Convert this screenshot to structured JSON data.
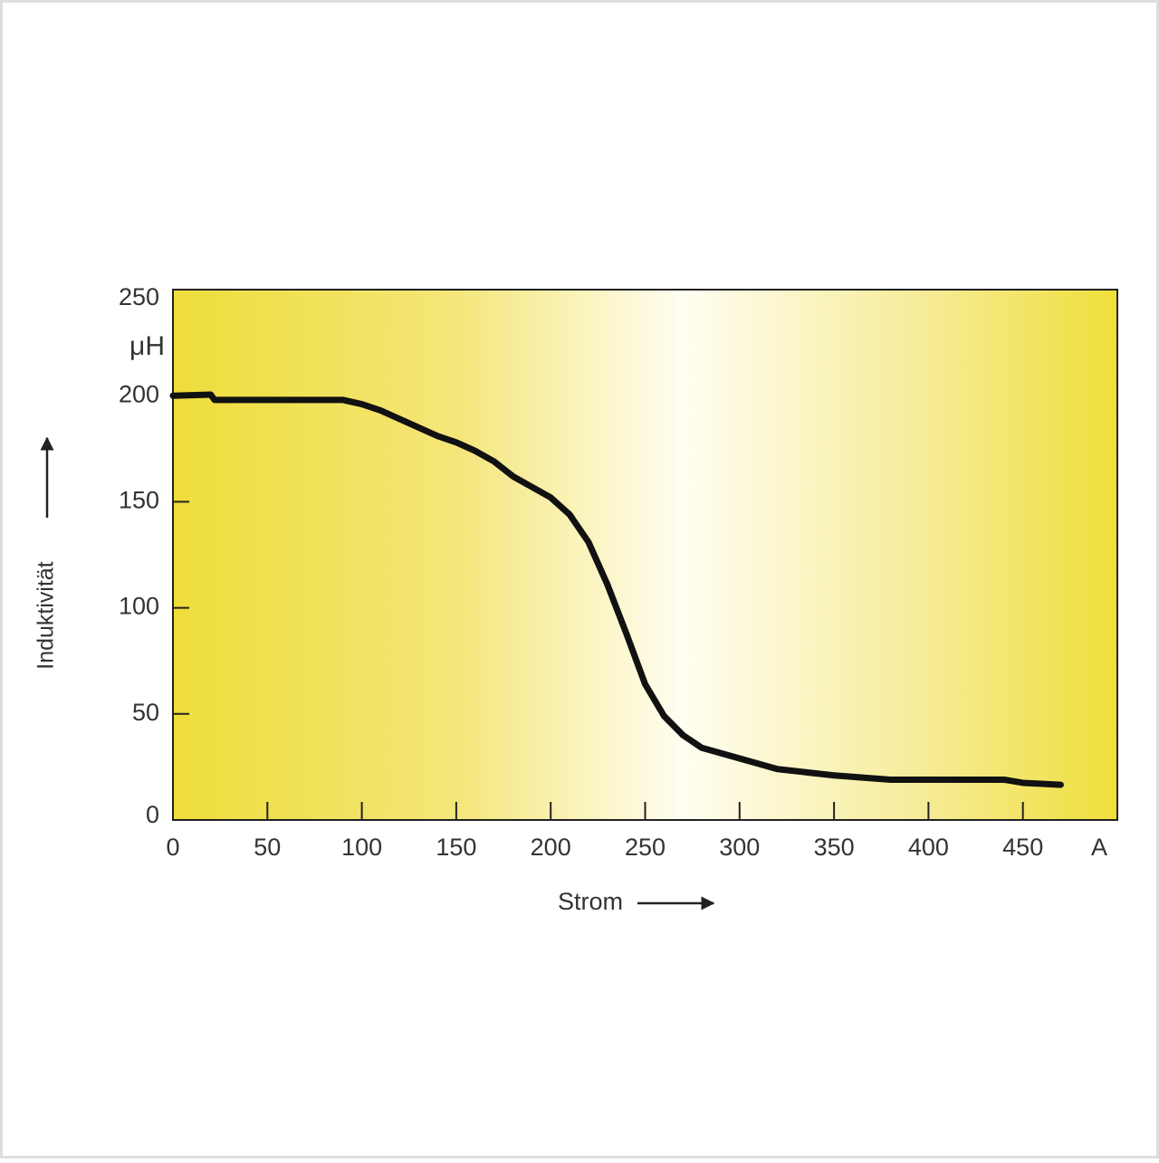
{
  "chart_data": {
    "type": "line",
    "x_label": "Strom",
    "y_label": "Induktivität",
    "x_unit": "A",
    "y_unit": "μH",
    "series": [
      {
        "name": null,
        "color": "#111111",
        "x": [
          0,
          20,
          22,
          50,
          90,
          100,
          110,
          120,
          130,
          140,
          150,
          160,
          170,
          180,
          190,
          200,
          210,
          220,
          230,
          240,
          250,
          260,
          270,
          280,
          300,
          320,
          350,
          380,
          400,
          440,
          450,
          470
        ],
        "values": [
          200,
          200.5,
          198,
          198,
          198,
          196,
          193,
          189,
          185,
          181,
          178,
          174,
          169,
          162,
          157,
          152,
          144,
          131,
          111,
          88,
          64,
          49,
          40,
          34,
          29,
          24,
          21,
          19,
          19,
          19,
          17.5,
          16.6
        ]
      }
    ],
    "xlim": [
      0,
      500
    ],
    "xticks": [
      0,
      50,
      100,
      150,
      200,
      250,
      300,
      350,
      400,
      450
    ],
    "ylim": [
      0,
      250
    ],
    "yticks": [
      0,
      50,
      100,
      150,
      200,
      250
    ]
  }
}
